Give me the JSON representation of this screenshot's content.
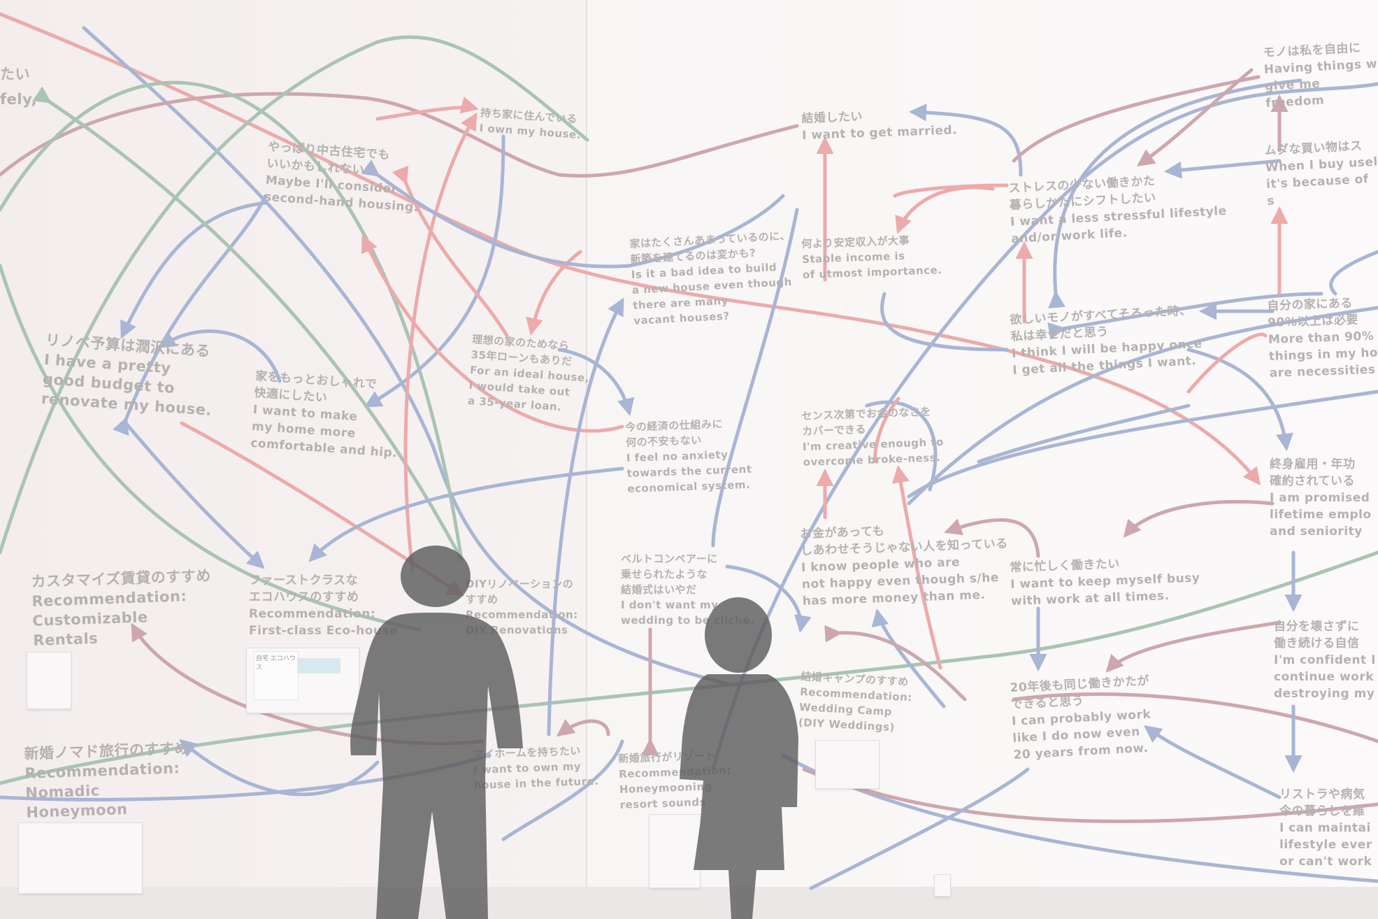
{
  "colors": {
    "blue": "#a8b5d4",
    "red": "#ecaaab",
    "green": "#a9c4b3",
    "mauve": "#cda7ad",
    "text": "#b5b1b1",
    "person": "#5b5b5b"
  },
  "labels": {
    "tl_a": "たい",
    "tl_b": "fely,",
    "renov": "リノベ予算は潤沢にある\nI have a pretty\ngood budget to\nrenovate my house.",
    "secondhand": "やっぱり中古住宅でも\nいいかもしれない\nMaybe I'll consider\nsecond-hand housing.",
    "mochiie": "持ち家に住んでいる\nI own my house.",
    "stylish": "家をもっとおしゃれで\n快適にしたい\nI want to make\nmy home more\ncomfortable and hip.",
    "vacant": "家はたくさんあまっているのに、\n新築を建てるのは変かも?\nIs it a bad idea to build\na new house even though\nthere are many\nvacant houses?",
    "loan": "理想の家のためなら\n35年ローンもありだ\nFor an ideal house,\nI would take out\na 35-year loan.",
    "economy": "今の経済の仕組みに\n何の不安もない\nI feel no anxiety\ntowards the current\neconomical system.",
    "rec_rental": "カスタマイズ賃貸のすすめ\nRecommendation:\nCustomizable\nRentals",
    "rec_eco": "ファーストクラスな\nエコハウスのすすめ\nRecommendation:\nFirst-class Eco-house",
    "rec_diy": "DIYリノベーションの\nすすめ\nRecommendation:\nDIY Renovations",
    "conveyor": "ベルトコンベアーに\n乗せられたような\n結婚式はいやだ\nI don't want my\nwedding to be cliché.",
    "rec_nomad": "新婚ノマド旅行のすすめ\nRecommendation:\nNomadic\nHoneymoon",
    "myhome": "マイホームを持ちたい\nI want to own my\nhouse in the future.",
    "resort": "新婚旅行がリゾート\nRecommendation:\nHoneymooning\nresort sounds",
    "married": "結婚したい\nI want to get married.",
    "stable": "何より安定収入が大事\nStable income is\nof utmost importance.",
    "creative": "センス次第でお金のなさを\nカバーできる\nI'm creative enough to\novercome broke-ness.",
    "money": "お金があっても\nしあわせそうじゃない人を知っている\nI know people who are\nnot happy even though s/he\nhas more money than me.",
    "rec_wedding": "結婚キャンプのすすめ\nRecommendation:\nWedding Camp\n(DIY Weddings)",
    "stress": "ストレスの少ない働きかた\n暮らしかたにシフトしたい\nI want a less stressful lifestyle\nand/or work life.",
    "happy": "欲しいモノがすべてそろった時、\n私は幸せだと思う\nI think I will be happy once\nI get all the things I want.",
    "busy": "常に忙しく働きたい\nI want to keep myself busy\nwith work at all times.",
    "twenty": "20年後も同じ働きかたが\nできると思う\nI can probably work\nlike I do now even\n20 years from now.",
    "freedom": "モノは私を自由に\nHaving things w\ngive me freedom",
    "useless": "ムダな買い物はス\nWhen I buy usel\nit's because of s",
    "ninety": "自分の家にある\n90%以上は必要\nMore than 90%\nthings in my ho\nare necessities",
    "lifetime": "終身雇用・年功\n確約されている\nI am promised\nlifetime emplo\nand seniority",
    "confident": "自分を壊さずに\n働き続ける自信\nI'm confident I\ncontinue work\ndestroying my",
    "restructure": "リストラや病気\n今の暮らしを維\nI can maintai\nlifestyle ever\nor can't work"
  },
  "flyer_text": "自宅\nエコハウス"
}
